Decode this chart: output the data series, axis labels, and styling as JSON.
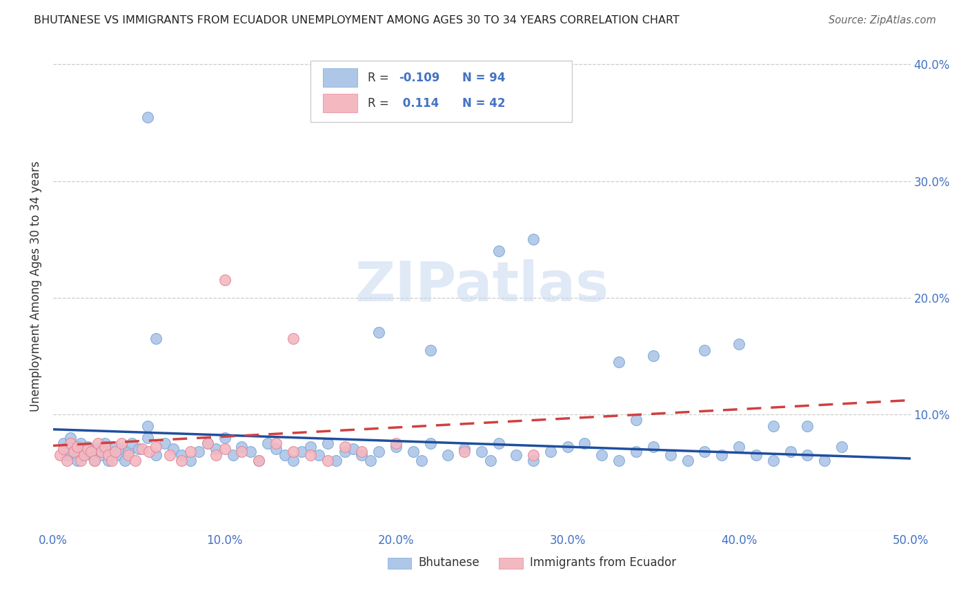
{
  "title": "BHUTANESE VS IMMIGRANTS FROM ECUADOR UNEMPLOYMENT AMONG AGES 30 TO 34 YEARS CORRELATION CHART",
  "source": "Source: ZipAtlas.com",
  "ylabel": "Unemployment Among Ages 30 to 34 years",
  "xlim": [
    0.0,
    0.5
  ],
  "ylim": [
    0.0,
    0.42
  ],
  "xtick_positions": [
    0.0,
    0.1,
    0.2,
    0.3,
    0.4,
    0.5
  ],
  "xtick_labels": [
    "0.0%",
    "10.0%",
    "20.0%",
    "30.0%",
    "40.0%",
    "50.0%"
  ],
  "ytick_positions": [
    0.0,
    0.1,
    0.2,
    0.3,
    0.4
  ],
  "ytick_labels_right": [
    "",
    "10.0%",
    "20.0%",
    "30.0%",
    "40.0%"
  ],
  "blue_R": "-0.109",
  "blue_N": "94",
  "pink_R": "0.114",
  "pink_N": "42",
  "blue_line": {
    "x0": 0.0,
    "x1": 0.5,
    "y0": 0.087,
    "y1": 0.062
  },
  "pink_line": {
    "x0": 0.0,
    "x1": 0.5,
    "y0": 0.073,
    "y1": 0.112
  },
  "watermark_text": "ZIPatlas",
  "background_color": "#ffffff",
  "grid_color": "#cccccc",
  "axis_tick_color": "#4472c4",
  "ylabel_color": "#333333",
  "title_color": "#222222",
  "source_color": "#666666",
  "scatter_blue_face": "#aec6e8",
  "scatter_blue_edge": "#7aa8d4",
  "scatter_pink_face": "#f4b8c1",
  "scatter_pink_edge": "#e08898",
  "trend_blue_color": "#1f4e9e",
  "trend_pink_color": "#d04040",
  "watermark_color": "#c8d8ef",
  "legend_facecolor": "#ffffff",
  "legend_edgecolor": "#cccccc",
  "legend_text_r_color": "#333333",
  "legend_text_val_color": "#4472c4",
  "bottom_legend_text_color": "#333333",
  "blue_x": [
    0.006,
    0.008,
    0.01,
    0.01,
    0.012,
    0.014,
    0.016,
    0.018,
    0.02,
    0.022,
    0.024,
    0.026,
    0.028,
    0.03,
    0.032,
    0.034,
    0.036,
    0.038,
    0.04,
    0.042,
    0.044,
    0.046,
    0.05,
    0.055,
    0.06,
    0.065,
    0.07,
    0.075,
    0.08,
    0.085,
    0.09,
    0.095,
    0.1,
    0.105,
    0.11,
    0.115,
    0.12,
    0.125,
    0.13,
    0.135,
    0.14,
    0.145,
    0.15,
    0.155,
    0.16,
    0.165,
    0.17,
    0.175,
    0.18,
    0.185,
    0.19,
    0.2,
    0.21,
    0.215,
    0.22,
    0.23,
    0.24,
    0.25,
    0.255,
    0.26,
    0.27,
    0.28,
    0.29,
    0.3,
    0.31,
    0.32,
    0.33,
    0.34,
    0.35,
    0.36,
    0.37,
    0.38,
    0.39,
    0.4,
    0.41,
    0.42,
    0.43,
    0.44,
    0.45,
    0.46,
    0.055,
    0.06,
    0.19,
    0.22,
    0.26,
    0.28,
    0.33,
    0.35,
    0.38,
    0.4,
    0.42,
    0.44,
    0.055,
    0.34
  ],
  "blue_y": [
    0.075,
    0.065,
    0.08,
    0.065,
    0.07,
    0.06,
    0.075,
    0.068,
    0.072,
    0.065,
    0.06,
    0.07,
    0.065,
    0.075,
    0.06,
    0.068,
    0.072,
    0.065,
    0.07,
    0.06,
    0.068,
    0.075,
    0.07,
    0.08,
    0.065,
    0.075,
    0.07,
    0.065,
    0.06,
    0.068,
    0.075,
    0.07,
    0.08,
    0.065,
    0.072,
    0.068,
    0.06,
    0.075,
    0.07,
    0.065,
    0.06,
    0.068,
    0.072,
    0.065,
    0.075,
    0.06,
    0.068,
    0.07,
    0.065,
    0.06,
    0.068,
    0.072,
    0.068,
    0.06,
    0.075,
    0.065,
    0.07,
    0.068,
    0.06,
    0.075,
    0.065,
    0.06,
    0.068,
    0.072,
    0.075,
    0.065,
    0.06,
    0.068,
    0.072,
    0.065,
    0.06,
    0.068,
    0.065,
    0.072,
    0.065,
    0.06,
    0.068,
    0.065,
    0.06,
    0.072,
    0.355,
    0.165,
    0.17,
    0.155,
    0.24,
    0.25,
    0.145,
    0.15,
    0.155,
    0.16,
    0.09,
    0.09,
    0.09,
    0.095
  ],
  "pink_x": [
    0.004,
    0.006,
    0.008,
    0.01,
    0.012,
    0.014,
    0.016,
    0.018,
    0.02,
    0.022,
    0.024,
    0.026,
    0.028,
    0.03,
    0.032,
    0.034,
    0.036,
    0.04,
    0.044,
    0.048,
    0.052,
    0.056,
    0.06,
    0.068,
    0.075,
    0.08,
    0.09,
    0.095,
    0.1,
    0.11,
    0.12,
    0.13,
    0.14,
    0.15,
    0.16,
    0.17,
    0.18,
    0.2,
    0.24,
    0.28,
    0.1,
    0.14
  ],
  "pink_y": [
    0.065,
    0.07,
    0.06,
    0.075,
    0.068,
    0.072,
    0.06,
    0.065,
    0.07,
    0.068,
    0.06,
    0.075,
    0.068,
    0.072,
    0.065,
    0.06,
    0.068,
    0.075,
    0.065,
    0.06,
    0.07,
    0.068,
    0.072,
    0.065,
    0.06,
    0.068,
    0.075,
    0.065,
    0.07,
    0.068,
    0.06,
    0.075,
    0.068,
    0.065,
    0.06,
    0.072,
    0.068,
    0.075,
    0.068,
    0.065,
    0.215,
    0.165
  ]
}
